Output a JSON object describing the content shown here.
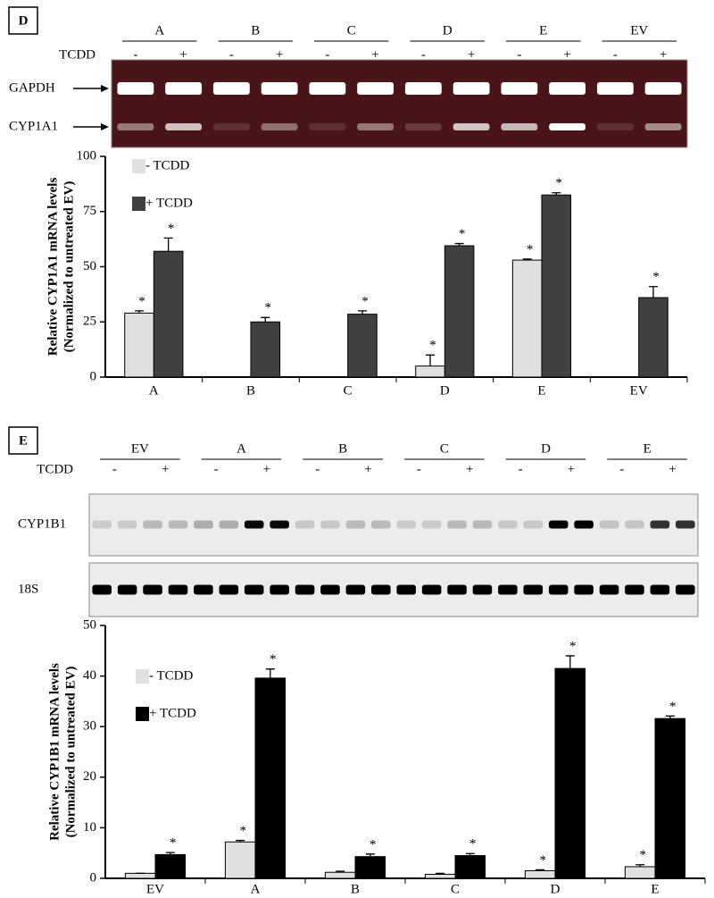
{
  "chart_data": [
    {
      "type": "bar",
      "panel": "D",
      "gel": {
        "groups": [
          "A",
          "B",
          "C",
          "D",
          "E",
          "EV"
        ],
        "treatment_label": "TCDD",
        "treatment": [
          "-",
          "+"
        ],
        "bands": [
          "GAPDH",
          "CYP1A1"
        ]
      },
      "ylabel": [
        "Relative CYP1A1 mRNA levels",
        "(Normalized to untreated EV)"
      ],
      "categories": [
        "A",
        "B",
        "C",
        "D",
        "E",
        "EV"
      ],
      "series": [
        {
          "name": "- TCDD",
          "color": "#e0e0e0",
          "values": [
            29,
            0,
            0,
            5,
            53,
            0
          ],
          "errors": [
            1,
            0,
            0,
            5,
            0.5,
            0
          ],
          "significance": [
            "*",
            null,
            null,
            "*",
            "*",
            null
          ]
        },
        {
          "name": "+ TCDD",
          "color": "#404040",
          "values": [
            57,
            25,
            28.5,
            59.5,
            82.5,
            36
          ],
          "errors": [
            6,
            2,
            1.5,
            1,
            1,
            5
          ],
          "significance": [
            "*",
            "*",
            "*",
            "*",
            "*",
            "*"
          ]
        }
      ],
      "ylim": [
        0,
        100
      ],
      "yticks": [
        0,
        25,
        50,
        75,
        100
      ]
    },
    {
      "type": "bar",
      "panel": "E",
      "gel": {
        "groups": [
          "EV",
          "A",
          "B",
          "C",
          "D",
          "E"
        ],
        "treatment_label": "TCDD",
        "treatment": [
          "-",
          "+"
        ],
        "bands": [
          "CYP1B1",
          "18S"
        ]
      },
      "ylabel": [
        "Relative CYP1B1 mRNA levels",
        "(Normalized to untreated EV)"
      ],
      "categories": [
        "EV",
        "A",
        "B",
        "C",
        "D",
        "E"
      ],
      "series": [
        {
          "name": "- TCDD",
          "color": "#e0e0e0",
          "values": [
            1,
            7.2,
            1.2,
            0.8,
            1.5,
            2.3
          ],
          "errors": [
            0,
            0.3,
            0.2,
            0.2,
            0.2,
            0.4
          ],
          "significance": [
            null,
            "*",
            null,
            null,
            "*",
            "*"
          ]
        },
        {
          "name": "+ TCDD",
          "color": "#000000",
          "values": [
            4.7,
            39.6,
            4.3,
            4.5,
            41.5,
            31.6
          ],
          "errors": [
            0.4,
            1.8,
            0.5,
            0.4,
            2.5,
            0.5
          ],
          "significance": [
            "*",
            "*",
            "*",
            "*",
            "*",
            "*"
          ]
        }
      ],
      "ylim": [
        0,
        50
      ],
      "yticks": [
        0,
        10,
        20,
        30,
        40,
        50
      ]
    }
  ]
}
